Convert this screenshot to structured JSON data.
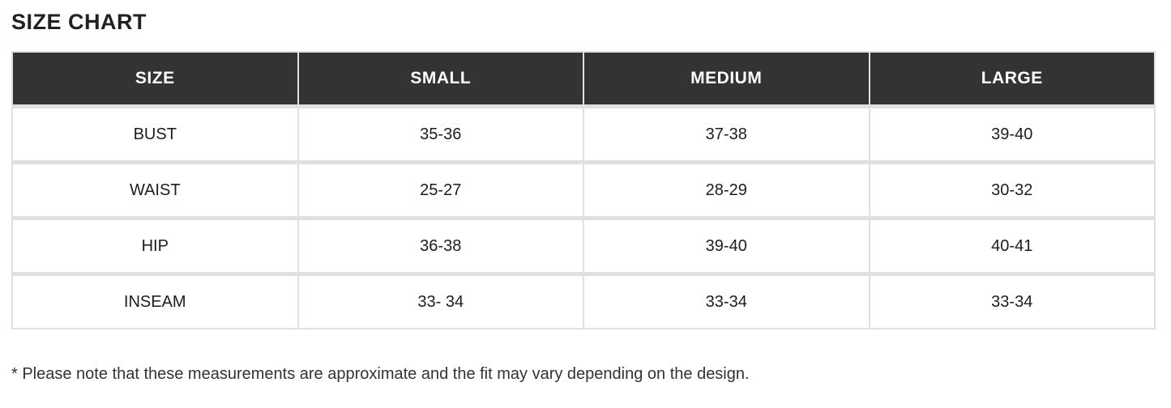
{
  "title": "SIZE CHART",
  "footnote": "* Please note that these measurements are approximate and the fit may vary depending on the design.",
  "table": {
    "columns": [
      "SIZE",
      "SMALL",
      "MEDIUM",
      "LARGE"
    ],
    "rows": [
      {
        "label": "BUST",
        "values": [
          "35-36",
          "37-38",
          "39-40"
        ]
      },
      {
        "label": "WAIST",
        "values": [
          "25-27",
          "28-29",
          "30-32"
        ]
      },
      {
        "label": "HIP",
        "values": [
          "36-38",
          "39-40",
          "40-41"
        ]
      },
      {
        "label": "INSEAM",
        "values": [
          "33- 34",
          "33-34",
          "33-34"
        ]
      }
    ]
  },
  "colors": {
    "header_bg": "#333333",
    "header_text": "#ffffff",
    "border": "#e0e0e0",
    "body_text": "#1d1d1d"
  }
}
